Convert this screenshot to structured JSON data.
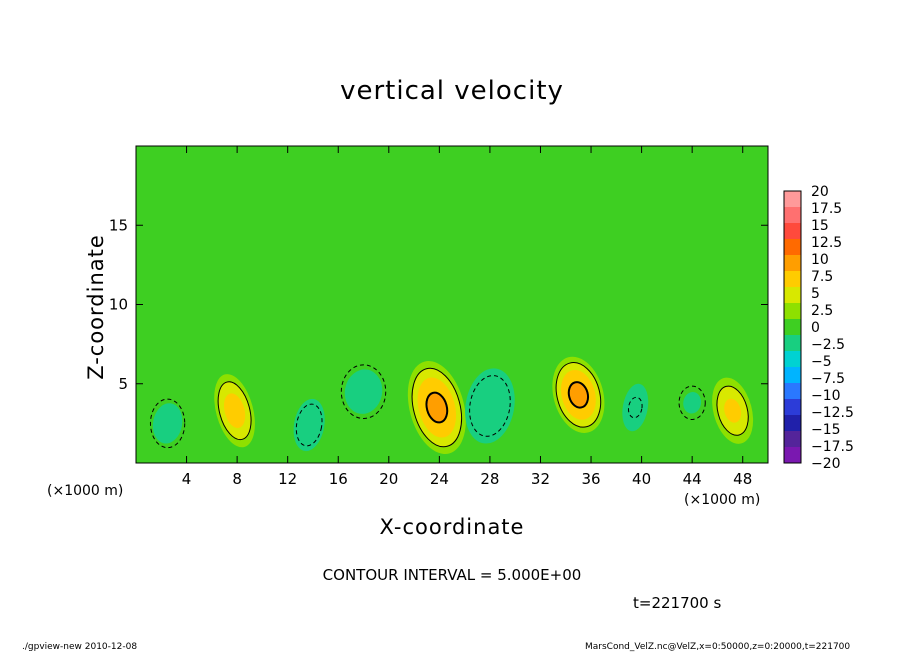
{
  "chart_data": {
    "type": "heatmap",
    "title": "vertical velocity",
    "xlabel": "X-coordinate",
    "ylabel": "Z-coordinate",
    "x_unit_left": "(×1000 m)",
    "x_unit_right": "(×1000 m)",
    "xlim": [
      0,
      50
    ],
    "ylim": [
      0,
      20
    ],
    "x_ticks": [
      "4",
      "8",
      "12",
      "16",
      "20",
      "24",
      "28",
      "32",
      "36",
      "40",
      "44",
      "48"
    ],
    "x_tick_values": [
      4,
      8,
      12,
      16,
      20,
      24,
      28,
      32,
      36,
      40,
      44,
      48
    ],
    "y_ticks": [
      "5",
      "10",
      "15"
    ],
    "y_tick_values": [
      5,
      10,
      15
    ],
    "colorbar_labels": [
      "20",
      "17.5",
      "15",
      "12.5",
      "10",
      "7.5",
      "5",
      "2.5",
      "0",
      "−2.5",
      "−5",
      "−7.5",
      "−10",
      "−12.5",
      "−15",
      "−17.5",
      "−20"
    ],
    "colorbar_values": [
      20,
      17.5,
      15,
      12.5,
      10,
      7.5,
      5,
      2.5,
      0,
      -2.5,
      -5,
      -7.5,
      -10,
      -12.5,
      -15,
      -17.5,
      -20
    ],
    "colorbar_colors": [
      "#ff9a9a",
      "#ff7070",
      "#ff4a3c",
      "#ff6a00",
      "#ff9e00",
      "#ffcc00",
      "#d8e800",
      "#8ee000",
      "#3ecf22",
      "#18cf80",
      "#00d2d2",
      "#00b4ff",
      "#2a78ff",
      "#2c3cd8",
      "#2020aa",
      "#54249a",
      "#7a18b0"
    ],
    "contour_interval": "CONTOUR INTERVAL = 5.000E+00",
    "features": [
      {
        "x": 7.8,
        "z": 3.3,
        "value": 8.5,
        "sx": 1.3,
        "sz": 2.4
      },
      {
        "x": 23.8,
        "z": 3.5,
        "value": 10.5,
        "sx": 2.0,
        "sz": 3.0
      },
      {
        "x": 35.0,
        "z": 4.3,
        "value": 10.5,
        "sx": 1.8,
        "sz": 2.4
      },
      {
        "x": 47.2,
        "z": 3.3,
        "value": 7.5,
        "sx": 1.4,
        "sz": 2.2
      },
      {
        "x": 13.7,
        "z": 2.4,
        "value": -8.5,
        "sx": 1.0,
        "sz": 1.6
      },
      {
        "x": 28.0,
        "z": 3.6,
        "value": -9.0,
        "sx": 1.8,
        "sz": 2.4
      },
      {
        "x": 2.5,
        "z": 2.5,
        "value": -4.0,
        "sx": 1.3,
        "sz": 1.6
      },
      {
        "x": 18.0,
        "z": 4.5,
        "value": -4.0,
        "sx": 1.8,
        "sz": 1.8
      },
      {
        "x": 39.5,
        "z": 3.5,
        "value": -5.0,
        "sx": 0.9,
        "sz": 1.7
      },
      {
        "x": 44.0,
        "z": 3.8,
        "value": -3.0,
        "sx": 0.9,
        "sz": 1.0
      }
    ]
  },
  "time_label": "t=221700 s",
  "footer_left": "./gpview-new   2010-12-08",
  "footer_right": "MarsCond_VelZ.nc@VelZ,x=0:50000,z=0:20000,t=221700"
}
